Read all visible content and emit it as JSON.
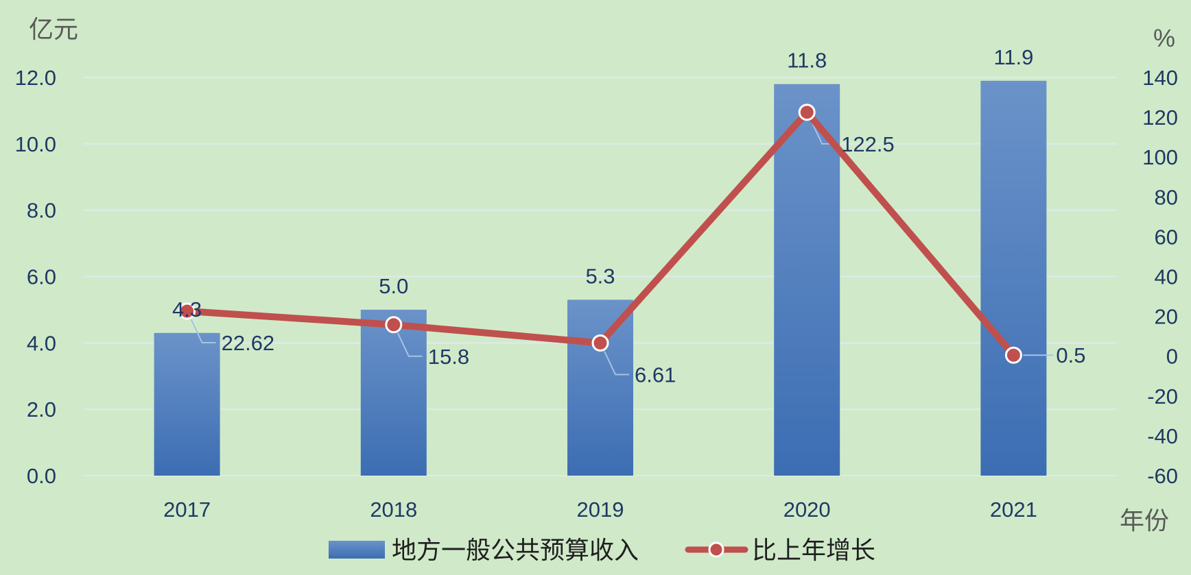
{
  "chart_data": {
    "type": "bar",
    "categories": [
      "2017",
      "2018",
      "2019",
      "2020",
      "2021"
    ],
    "series": [
      {
        "name": "地方一般公共预算收入",
        "type": "bar",
        "axis": "left",
        "values": [
          4.3,
          5.0,
          5.3,
          11.8,
          11.9
        ],
        "labels": [
          "4.3",
          "5.0",
          "5.3",
          "11.8",
          "11.9"
        ],
        "color": "#4a7ebf"
      },
      {
        "name": "比上年增长",
        "type": "line",
        "axis": "right",
        "values": [
          22.62,
          15.8,
          6.61,
          122.5,
          0.5
        ],
        "labels": [
          "22.62",
          "15.8",
          "6.61",
          "122.5",
          "0.5"
        ],
        "color": "#c0504d"
      }
    ],
    "y_left": {
      "unit": "亿元",
      "ylim": [
        0,
        12
      ],
      "ticks": [
        "0.0",
        "2.0",
        "4.0",
        "6.0",
        "8.0",
        "10.0",
        "12.0"
      ]
    },
    "y_right": {
      "unit": "%",
      "ylim": [
        -60,
        140
      ],
      "ticks": [
        "-60",
        "-40",
        "-20",
        "0",
        "20",
        "40",
        "60",
        "80",
        "100",
        "120",
        "140"
      ]
    },
    "xlabel": "年份",
    "grid": true,
    "legend_position": "bottom"
  }
}
